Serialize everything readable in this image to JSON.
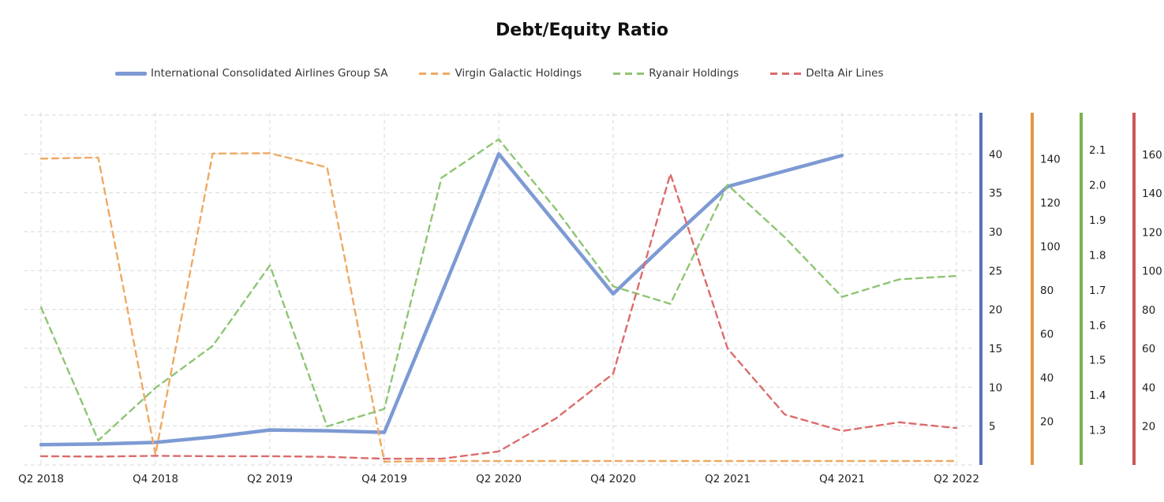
{
  "title": "Debt/Equity Ratio",
  "legend": {
    "items": [
      {
        "label": "International Consolidated Airlines Group SA",
        "color": "#7d9ad3",
        "style": "solid"
      },
      {
        "label": "Virgin Galactic Holdings",
        "color": "#efa963",
        "style": "dashed"
      },
      {
        "label": "Ryanair Holdings",
        "color": "#8ec573",
        "style": "dashed"
      },
      {
        "label": "Delta Air Lines",
        "color": "#dc6b6b",
        "style": "dashed"
      }
    ]
  },
  "chart_data": {
    "type": "line",
    "title": "Debt/Equity Ratio",
    "grid": true,
    "legend_position": "top",
    "x_tick_labels": [
      "Q2 2018",
      "Q4 2018",
      "Q2 2019",
      "Q4 2019",
      "Q2 2020",
      "Q4 2020",
      "Q2 2021",
      "Q4 2021",
      "Q2 2022"
    ],
    "quarters": [
      "Q2 2018",
      "Q3 2018",
      "Q4 2018",
      "Q1 2019",
      "Q2 2019",
      "Q3 2019",
      "Q4 2019",
      "Q1 2020",
      "Q2 2020",
      "Q3 2020",
      "Q4 2020",
      "Q1 2021",
      "Q2 2021",
      "Q3 2021",
      "Q4 2021",
      "Q1 2022",
      "Q2 2022"
    ],
    "series": [
      {
        "name": "International Consolidated Airlines Group SA",
        "style": "solid",
        "color": "#7d9ad3",
        "axis_color": "#5574b8",
        "axis": {
          "min": 0,
          "max": 45.3,
          "ticks": [
            "5",
            "10",
            "15",
            "20",
            "25",
            "30",
            "35",
            "40"
          ]
        },
        "values": [
          2.6,
          2.7,
          2.9,
          3.6,
          4.5,
          4.4,
          4.2,
          22.0,
          40.0,
          31.0,
          22.0,
          29.0,
          35.8,
          37.8,
          39.8,
          null,
          null
        ]
      },
      {
        "name": "Virgin Galactic Holdings",
        "style": "dashed",
        "color": "#efa963",
        "axis_color": "#e39744",
        "axis": {
          "min": 0,
          "max": 161,
          "ticks": [
            "20",
            "40",
            "60",
            "80",
            "100",
            "120",
            "140"
          ]
        },
        "values": [
          140,
          140.5,
          4.7,
          142.3,
          142.5,
          136,
          1.5,
          1.8,
          1.8,
          1.8,
          1.8,
          1.8,
          1.8,
          1.8,
          1.8,
          1.8,
          1.8
        ]
      },
      {
        "name": "Ryanair Holdings",
        "style": "dashed",
        "color": "#8ec573",
        "axis_color": "#7ab254",
        "axis": {
          "min": 1.2,
          "max": 2.206,
          "ticks": [
            "1.3",
            "1.4",
            "1.5",
            "1.6",
            "1.7",
            "1.8",
            "1.9",
            "2.0",
            "2.1"
          ]
        },
        "values": [
          1.65,
          1.27,
          1.42,
          1.54,
          1.77,
          1.31,
          1.36,
          2.02,
          2.13,
          1.93,
          1.71,
          1.66,
          2.0,
          1.85,
          1.68,
          1.73,
          1.74
        ]
      },
      {
        "name": "Delta Air Lines",
        "style": "dashed",
        "color": "#dc6b6b",
        "axis_color": "#cd5757",
        "axis": {
          "min": 0,
          "max": 181.5,
          "ticks": [
            "20",
            "40",
            "60",
            "80",
            "100",
            "120",
            "140",
            "160"
          ]
        },
        "values": [
          4.5,
          4.3,
          4.7,
          4.5,
          4.5,
          4.2,
          3.2,
          3.2,
          7,
          24,
          47,
          150,
          60,
          26,
          17.5,
          22,
          19
        ]
      }
    ]
  }
}
